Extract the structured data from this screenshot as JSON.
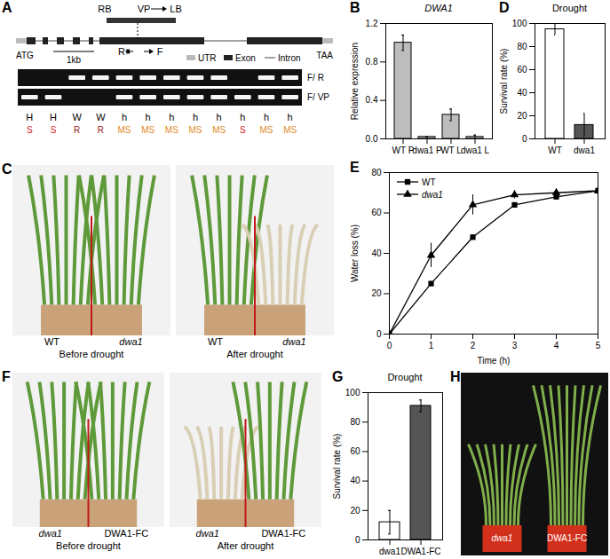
{
  "figure": {
    "panels": [
      "A",
      "B",
      "C",
      "D",
      "E",
      "F",
      "G",
      "H"
    ],
    "chart_panels": [
      "B",
      "D",
      "E",
      "G"
    ],
    "A": {
      "insert": [
        "RB",
        "VP",
        "LB"
      ],
      "primers": [
        "R",
        "F"
      ],
      "start": "ATG",
      "end": "TAA",
      "scale": "1kb",
      "key": [
        "UTR",
        "Exon",
        "Intron"
      ],
      "gel_rows": [
        {
          "label": "F/ R",
          "bands": [
            false,
            false,
            true,
            true,
            true,
            true,
            true,
            true,
            true,
            false,
            true,
            true
          ]
        },
        {
          "label": "F/ VP",
          "bands": [
            true,
            true,
            false,
            false,
            true,
            true,
            true,
            true,
            true,
            true,
            true,
            true
          ]
        }
      ],
      "lanes": [
        {
          "genotype": "H",
          "phenotype": "S"
        },
        {
          "genotype": "H",
          "phenotype": "S"
        },
        {
          "genotype": "W",
          "phenotype": "R"
        },
        {
          "genotype": "W",
          "phenotype": "R"
        },
        {
          "genotype": "h",
          "phenotype": "MS"
        },
        {
          "genotype": "h",
          "phenotype": "MS"
        },
        {
          "genotype": "h",
          "phenotype": "MS"
        },
        {
          "genotype": "h",
          "phenotype": "MS"
        },
        {
          "genotype": "h",
          "phenotype": "MS"
        },
        {
          "genotype": "h",
          "phenotype": "S"
        },
        {
          "genotype": "h",
          "phenotype": "MS"
        },
        {
          "genotype": "h",
          "phenotype": "MS"
        }
      ]
    },
    "C": {
      "left": "WT",
      "right": "dwa1",
      "captions": [
        "Before drought",
        "After drought"
      ]
    },
    "F": {
      "left": "dwa1",
      "right": "DWA1-FC",
      "captions": [
        "Before drought",
        "After drought"
      ]
    },
    "H": {
      "labels": [
        "dwa1",
        "DWA1-FC"
      ]
    }
  },
  "chart_data": [
    {
      "type": "bar",
      "title": "DWA1",
      "y_label": "Relative expression",
      "categories": [
        "WT P",
        "dwa1 P",
        "WT L",
        "dwa1 L"
      ],
      "values": [
        1.0,
        0.02,
        0.25,
        0.02
      ],
      "errors": [
        0.08,
        0.0,
        0.06,
        0.02
      ],
      "colors": [
        "#bdbdbd",
        "#bdbdbd",
        "#bdbdbd",
        "#bdbdbd"
      ],
      "ylim": [
        0,
        1.2
      ],
      "yticks": [
        {
          "value": 0,
          "label": "0.0"
        },
        {
          "value": 0.4,
          "label": "0.4"
        },
        {
          "value": 0.8,
          "label": "0.8"
        },
        {
          "value": 1.2,
          "label": "1.2"
        }
      ]
    },
    {
      "type": "bar",
      "title": "Drought",
      "y_label": "Survival rate (%)",
      "categories": [
        "WT",
        "dwa1"
      ],
      "values": [
        95,
        12
      ],
      "errors": [
        5,
        10
      ],
      "colors": [
        "#ffffff",
        "#555555"
      ],
      "ylim": [
        0,
        100
      ],
      "yticks": [
        0,
        20,
        40,
        60,
        80,
        100
      ]
    },
    {
      "type": "line",
      "x_label": "Time (h)",
      "y_label": "Water loss (%)",
      "x": [
        0,
        1,
        2,
        3,
        4,
        5
      ],
      "series": [
        {
          "name": "WT",
          "marker": "square",
          "color": "#000000",
          "values": [
            0,
            25,
            48,
            64,
            68,
            71
          ],
          "errors": [
            0,
            1,
            1,
            1,
            1,
            1
          ]
        },
        {
          "name": "dwa1",
          "marker": "triangle",
          "color": "#000000",
          "values": [
            0,
            39,
            64,
            69,
            70,
            71
          ],
          "errors": [
            0,
            6,
            5,
            2,
            1,
            1
          ]
        }
      ],
      "xlim": [
        0,
        5
      ],
      "xticks": [
        0,
        1,
        2,
        3,
        4,
        5
      ],
      "ylim": [
        0,
        80
      ],
      "yticks": [
        0,
        20,
        40,
        60,
        80
      ],
      "legend": "top-left"
    },
    {
      "type": "bar",
      "title": "Drought",
      "y_label": "Survival rate (%)",
      "categories": [
        "dwa1",
        "DWA1-FC"
      ],
      "values": [
        12,
        91
      ],
      "errors": [
        8,
        4
      ],
      "colors": [
        "#ffffff",
        "#555555"
      ],
      "ylim": [
        0,
        100
      ],
      "yticks": [
        0,
        20,
        40,
        60,
        80,
        100
      ]
    }
  ]
}
